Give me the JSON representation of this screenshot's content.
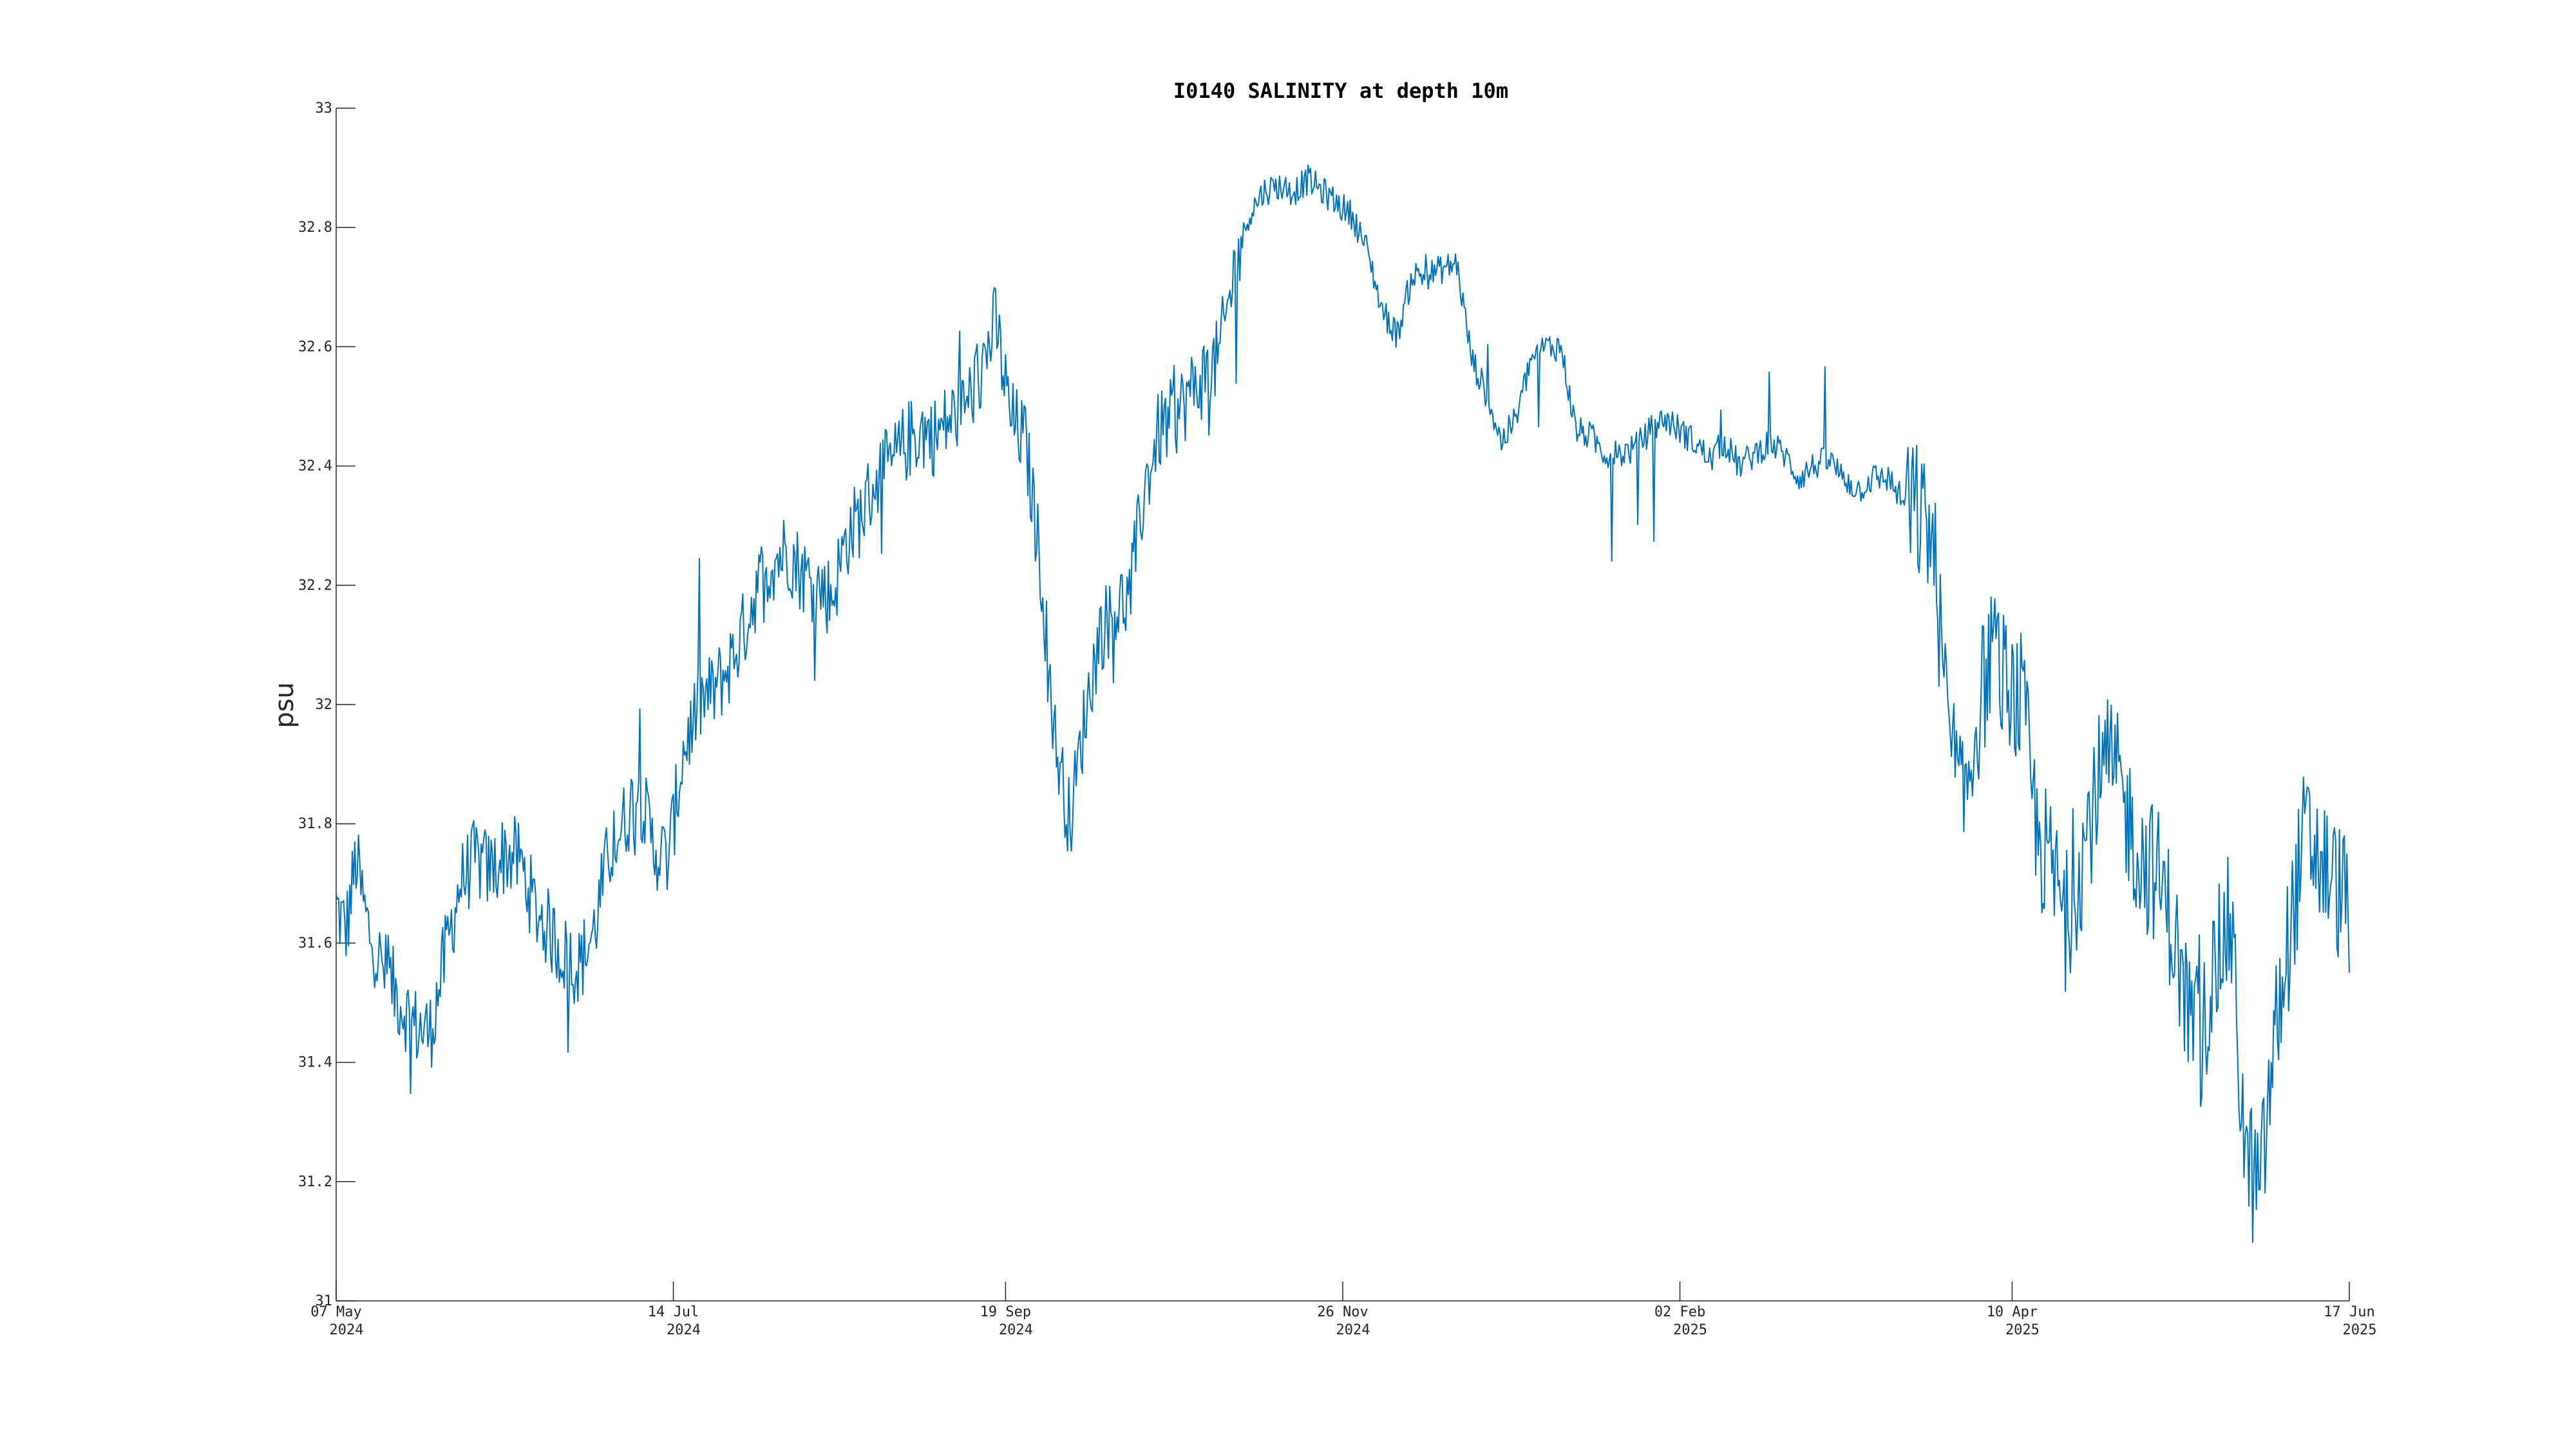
{
  "chart_data": {
    "type": "line",
    "title": "I0140 SALINITY at depth 10m",
    "xlabel": "",
    "ylabel": "psu",
    "xlim": [
      "2024-05-07",
      "2025-06-17"
    ],
    "ylim": [
      31,
      33
    ],
    "grid": false,
    "legend": "none",
    "x_ticks": [
      {
        "date": "2024-05-07",
        "line1": "07 May",
        "line2": "2024"
      },
      {
        "date": "2024-07-14",
        "line1": "14 Jul",
        "line2": "2024"
      },
      {
        "date": "2024-09-19",
        "line1": "19 Sep",
        "line2": "2024"
      },
      {
        "date": "2024-11-26",
        "line1": "26 Nov",
        "line2": "2024"
      },
      {
        "date": "2025-02-02",
        "line1": "02 Feb",
        "line2": "2025"
      },
      {
        "date": "2025-04-10",
        "line1": "10 Apr",
        "line2": "2025"
      },
      {
        "date": "2025-06-17",
        "line1": "17 Jun",
        "line2": "2025"
      }
    ],
    "y_ticks": [
      "31",
      "31.2",
      "31.4",
      "31.6",
      "31.8",
      "32",
      "32.2",
      "32.4",
      "32.6",
      "32.8",
      "33"
    ],
    "series": [
      {
        "color": "#0072BD",
        "x": [
          "2024-05-07",
          "2024-05-09",
          "2024-05-11",
          "2024-05-13",
          "2024-05-15",
          "2024-05-17",
          "2024-05-20",
          "2024-05-23",
          "2024-05-26",
          "2024-05-29",
          "2024-06-01",
          "2024-06-04",
          "2024-06-07",
          "2024-06-10",
          "2024-06-13",
          "2024-06-16",
          "2024-06-19",
          "2024-06-22",
          "2024-06-25",
          "2024-06-28",
          "2024-07-01",
          "2024-07-04",
          "2024-07-07",
          "2024-07-10",
          "2024-07-13",
          "2024-07-16",
          "2024-07-19",
          "2024-07-22",
          "2024-07-25",
          "2024-07-28",
          "2024-07-31",
          "2024-08-03",
          "2024-08-06",
          "2024-08-09",
          "2024-08-12",
          "2024-08-15",
          "2024-08-18",
          "2024-08-21",
          "2024-08-24",
          "2024-08-27",
          "2024-08-30",
          "2024-09-02",
          "2024-09-05",
          "2024-09-08",
          "2024-09-11",
          "2024-09-14",
          "2024-09-17",
          "2024-09-20",
          "2024-09-23",
          "2024-09-26",
          "2024-09-29",
          "2024-10-02",
          "2024-10-05",
          "2024-10-08",
          "2024-10-11",
          "2024-10-14",
          "2024-10-17",
          "2024-10-20",
          "2024-10-23",
          "2024-10-26",
          "2024-10-29",
          "2024-11-01",
          "2024-11-04",
          "2024-11-07",
          "2024-11-10",
          "2024-11-13",
          "2024-11-16",
          "2024-11-19",
          "2024-11-22",
          "2024-11-25",
          "2024-11-28",
          "2024-12-01",
          "2024-12-04",
          "2024-12-07",
          "2024-12-10",
          "2024-12-13",
          "2024-12-16",
          "2024-12-19",
          "2024-12-22",
          "2024-12-25",
          "2024-12-28",
          "2024-12-31",
          "2025-01-03",
          "2025-01-06",
          "2025-01-09",
          "2025-01-12",
          "2025-01-15",
          "2025-01-18",
          "2025-01-21",
          "2025-01-24",
          "2025-01-27",
          "2025-01-30",
          "2025-02-02",
          "2025-02-05",
          "2025-02-08",
          "2025-02-11",
          "2025-02-14",
          "2025-02-17",
          "2025-02-20",
          "2025-02-23",
          "2025-02-26",
          "2025-03-01",
          "2025-03-04",
          "2025-03-07",
          "2025-03-10",
          "2025-03-13",
          "2025-03-16",
          "2025-03-19",
          "2025-03-22",
          "2025-03-25",
          "2025-03-28",
          "2025-03-31",
          "2025-04-03",
          "2025-04-06",
          "2025-04-09",
          "2025-04-12",
          "2025-04-15",
          "2025-04-18",
          "2025-04-21",
          "2025-04-24",
          "2025-04-27",
          "2025-04-30",
          "2025-05-03",
          "2025-05-06",
          "2025-05-09",
          "2025-05-12",
          "2025-05-15",
          "2025-05-18",
          "2025-05-21",
          "2025-05-24",
          "2025-05-27",
          "2025-05-30",
          "2025-06-02",
          "2025-06-05",
          "2025-06-08",
          "2025-06-11",
          "2025-06-14",
          "2025-06-17"
        ],
        "y": [
          31.66,
          31.62,
          31.74,
          31.64,
          31.58,
          31.55,
          31.5,
          31.46,
          31.45,
          31.58,
          31.7,
          31.74,
          31.72,
          31.75,
          31.74,
          31.66,
          31.62,
          31.58,
          31.56,
          31.62,
          31.75,
          31.8,
          31.86,
          31.76,
          31.74,
          31.92,
          32.0,
          32.02,
          32.06,
          32.12,
          32.2,
          32.24,
          32.26,
          32.22,
          32.2,
          32.18,
          32.28,
          32.32,
          32.38,
          32.4,
          32.44,
          32.46,
          32.45,
          32.48,
          32.5,
          32.56,
          32.64,
          32.48,
          32.44,
          32.24,
          31.94,
          31.8,
          31.98,
          32.12,
          32.16,
          32.18,
          32.36,
          32.46,
          32.48,
          32.52,
          32.55,
          32.58,
          32.72,
          32.82,
          32.86,
          32.87,
          32.86,
          32.88,
          32.86,
          32.84,
          32.82,
          32.76,
          32.66,
          32.62,
          32.72,
          32.72,
          32.73,
          32.74,
          32.58,
          32.52,
          32.44,
          32.48,
          32.58,
          32.6,
          32.6,
          32.46,
          32.45,
          32.42,
          32.42,
          32.43,
          32.46,
          32.48,
          32.46,
          32.44,
          32.41,
          32.44,
          32.4,
          32.42,
          32.44,
          32.42,
          32.38,
          32.4,
          32.41,
          32.38,
          32.36,
          32.38,
          32.38,
          32.34,
          32.32,
          32.28,
          31.96,
          31.82,
          31.98,
          32.1,
          32.02,
          32.0,
          31.78,
          31.72,
          31.64,
          31.74,
          31.86,
          31.9,
          31.82,
          31.74,
          31.72,
          31.64,
          31.5,
          31.44,
          31.56,
          31.64,
          31.24,
          31.18,
          31.44,
          31.62,
          31.78,
          31.74,
          31.7,
          31.66
        ]
      }
    ]
  }
}
